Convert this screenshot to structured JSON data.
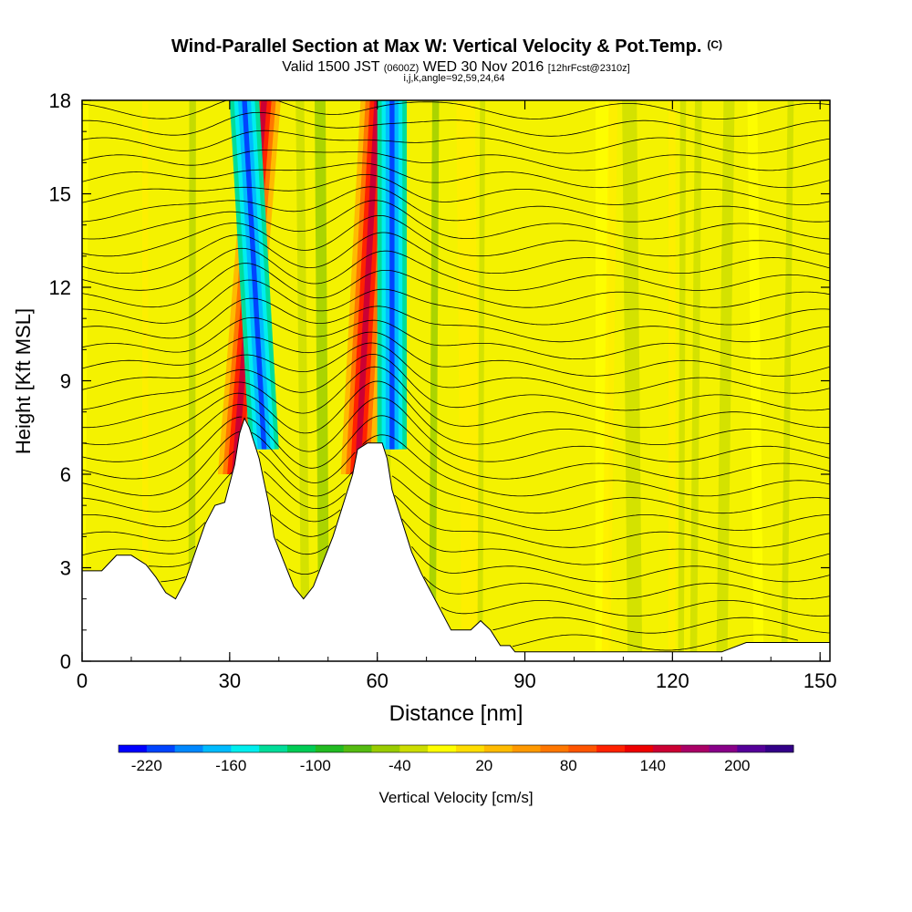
{
  "chart_data": {
    "type": "heatmap",
    "title": "Wind-Parallel Section at Max W: Vertical Velocity & Pot.Temp.",
    "title_mark": "(C)",
    "subtitle_parts": [
      "Valid 1500 JST",
      "(0600Z)",
      "WED 30 Nov 2016",
      "[12hrFcst@2310z]"
    ],
    "index_line": "i,j,k,angle=92,59,24,64",
    "xlabel": "Distance [nm]",
    "ylabel": "Height [Kft MSL]",
    "xlim": [
      0,
      152
    ],
    "ylim": [
      0,
      18
    ],
    "x_ticks": [
      "0",
      "30",
      "60",
      "90",
      "120",
      "150"
    ],
    "x_tick_values": [
      0,
      30,
      60,
      90,
      120,
      150
    ],
    "y_ticks": [
      "0",
      "3",
      "6",
      "9",
      "12",
      "15",
      "18"
    ],
    "y_tick_values": [
      0,
      3,
      6,
      9,
      12,
      15,
      18
    ],
    "colorbar_label": "Vertical Velocity [cm/s]",
    "colorbar_ticks": [
      "-220",
      "-160",
      "-100",
      "-40",
      "20",
      "80",
      "140",
      "200"
    ],
    "colorbar_tick_values": [
      -220,
      -160,
      -100,
      -40,
      20,
      80,
      140,
      200
    ],
    "colorbar_range": [
      -240,
      240
    ],
    "colorbar_colors": [
      "#0000ff",
      "#0044ff",
      "#0088ff",
      "#00bbff",
      "#00eeee",
      "#00dd99",
      "#00cc55",
      "#22bb22",
      "#55bb11",
      "#99cc00",
      "#ccdd00",
      "#ffff00",
      "#ffdd00",
      "#ffbb00",
      "#ff9900",
      "#ff7700",
      "#ff5500",
      "#ff2200",
      "#ee0000",
      "#cc0033",
      "#aa0066",
      "#880088",
      "#550099",
      "#330088"
    ],
    "terrain": [
      [
        0,
        2.9
      ],
      [
        4,
        2.9
      ],
      [
        7,
        3.4
      ],
      [
        10,
        3.4
      ],
      [
        13,
        3.1
      ],
      [
        15,
        2.7
      ],
      [
        17,
        2.2
      ],
      [
        19,
        2.0
      ],
      [
        21,
        2.6
      ],
      [
        23,
        3.5
      ],
      [
        25,
        4.4
      ],
      [
        27,
        5.0
      ],
      [
        29,
        5.1
      ],
      [
        31,
        6.3
      ],
      [
        32,
        7.3
      ],
      [
        33,
        7.8
      ],
      [
        34,
        7.5
      ],
      [
        36,
        6.5
      ],
      [
        38,
        5.0
      ],
      [
        39,
        4.0
      ],
      [
        41,
        3.2
      ],
      [
        43,
        2.4
      ],
      [
        45,
        2.0
      ],
      [
        47,
        2.4
      ],
      [
        49,
        3.2
      ],
      [
        51,
        4.0
      ],
      [
        53,
        5.0
      ],
      [
        55,
        6.0
      ],
      [
        56,
        6.8
      ],
      [
        58,
        7.0
      ],
      [
        61,
        7.0
      ],
      [
        62,
        6.5
      ],
      [
        63,
        5.5
      ],
      [
        65,
        4.5
      ],
      [
        67,
        3.5
      ],
      [
        69,
        2.8
      ],
      [
        71,
        2.2
      ],
      [
        73,
        1.6
      ],
      [
        75,
        1.0
      ],
      [
        77,
        1.0
      ],
      [
        79,
        1.0
      ],
      [
        81,
        1.3
      ],
      [
        83,
        1.0
      ],
      [
        85,
        0.5
      ],
      [
        87,
        0.5
      ],
      [
        88,
        0.3
      ],
      [
        95,
        0.3
      ],
      [
        110,
        0.3
      ],
      [
        130,
        0.3
      ],
      [
        135,
        0.6
      ],
      [
        152,
        0.6
      ]
    ],
    "updraft_cores": [
      {
        "x_top": 37,
        "x_bottom": 31,
        "peak": 180
      },
      {
        "x_top": 60,
        "x_bottom": 56,
        "peak": 180
      }
    ],
    "downdraft_cores": [
      {
        "x_top": 33,
        "x_bottom": 37,
        "peak": -180
      },
      {
        "x_top": 63,
        "x_bottom": 63,
        "peak": -180
      }
    ],
    "isentropes": "pot.temp contours ~every 0.5 kft, perturbed over ridges"
  }
}
